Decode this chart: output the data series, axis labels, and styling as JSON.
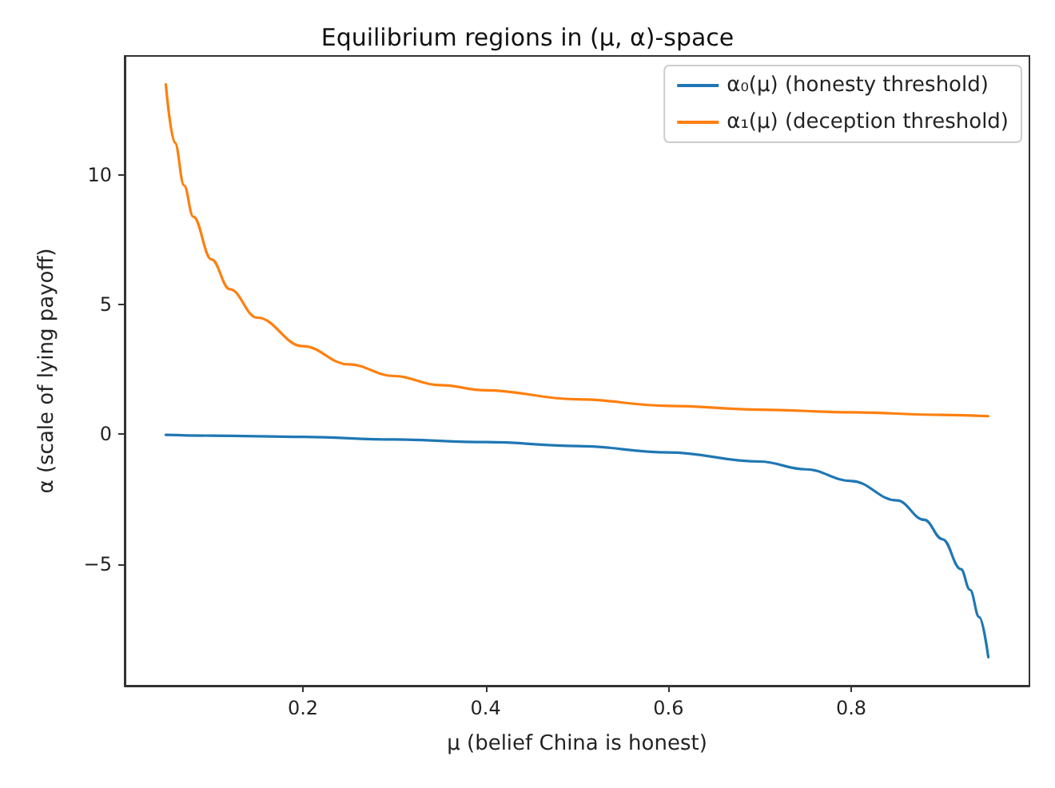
{
  "chart_data": {
    "type": "line",
    "title": "Equilibrium regions in (μ, α)-space",
    "xlabel": "μ (belief China is honest)",
    "ylabel": "α (scale of lying payoff)",
    "series": [
      {
        "name": "α₀(μ) (honesty threshold)",
        "color": "#1f77b4",
        "x": [
          0.05,
          0.1,
          0.2,
          0.3,
          0.4,
          0.5,
          0.6,
          0.7,
          0.75,
          0.8,
          0.85,
          0.88,
          0.9,
          0.92,
          0.93,
          0.94,
          0.95
        ],
        "values": [
          -0.02,
          -0.05,
          -0.1,
          -0.2,
          -0.3,
          -0.45,
          -0.7,
          -1.05,
          -1.35,
          -1.8,
          -2.55,
          -3.3,
          -4.05,
          -5.2,
          -6.0,
          -7.05,
          -8.6
        ]
      },
      {
        "name": "α₁(μ) (deception threshold)",
        "color": "#ff7f0e",
        "x": [
          0.05,
          0.06,
          0.07,
          0.08,
          0.1,
          0.12,
          0.15,
          0.2,
          0.25,
          0.3,
          0.35,
          0.4,
          0.5,
          0.6,
          0.7,
          0.8,
          0.9,
          0.95
        ],
        "values": [
          13.5,
          11.25,
          9.6,
          8.4,
          6.75,
          5.6,
          4.5,
          3.4,
          2.7,
          2.25,
          1.9,
          1.7,
          1.35,
          1.1,
          0.95,
          0.85,
          0.75,
          0.7
        ]
      }
    ],
    "xlim": [
      0.005,
      0.995
    ],
    "xticks": [
      0.2,
      0.4,
      0.6,
      0.8
    ],
    "ylim": [
      -9.7,
      14.6
    ],
    "yticks": [
      -5,
      0,
      5,
      10
    ],
    "grid": false,
    "legend": "top right",
    "marker": "none",
    "line_style": "solid"
  }
}
